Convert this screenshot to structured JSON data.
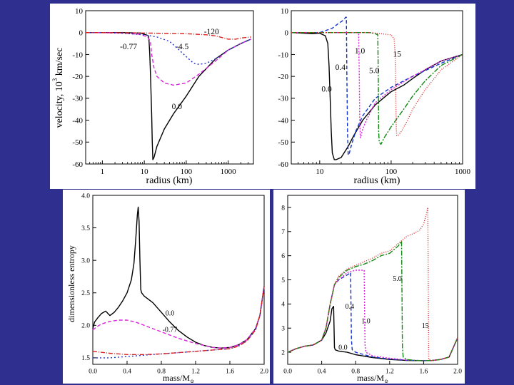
{
  "chart_data": [
    {
      "id": "top-left",
      "type": "line",
      "xlabel": "radius (km)",
      "ylabel": "velocity, 10",
      "ylabel_sup": "3",
      "ylabel_unit": " km/sec",
      "xscale": "log",
      "xlim": [
        0.4,
        4000
      ],
      "ylim": [
        -60,
        10
      ],
      "xticks": [
        1,
        10,
        100,
        1000
      ],
      "xtick_labels": [
        "1",
        "10",
        "100",
        "1000"
      ],
      "yticks": [
        10,
        0,
        -10,
        -20,
        -30,
        -40,
        -50,
        -60
      ],
      "series": [
        {
          "name": "0.0",
          "color": "#000000",
          "dash": "",
          "x": [
            0.4,
            1,
            3,
            8,
            11,
            12.5,
            13,
            13.5,
            14,
            14.5,
            15,
            15.5,
            16,
            17,
            20,
            30,
            50,
            100,
            200,
            500,
            1000,
            2000,
            3500
          ],
          "y": [
            0,
            0,
            0,
            -0.2,
            -1,
            -1.5,
            -4,
            -10,
            -18,
            -28,
            -38,
            -50,
            -58,
            -57,
            -52,
            -44,
            -37,
            -29,
            -20,
            -12,
            -8,
            -5,
            -3
          ]
        },
        {
          "name": "-0.77",
          "color": "#dd22dd",
          "dash": "5,3",
          "x": [
            0.4,
            1,
            3,
            8,
            12,
            14,
            15,
            17,
            20,
            30,
            50,
            100,
            200,
            500,
            1000,
            2000,
            3500
          ],
          "y": [
            0,
            0,
            -0.2,
            -0.8,
            -2,
            -4,
            -10,
            -16,
            -20,
            -23,
            -24,
            -23,
            -19,
            -13,
            -8,
            -5,
            -3
          ]
        },
        {
          "name": "-4.5",
          "color": "#2233cc",
          "dash": "2,3",
          "x": [
            0.4,
            1,
            3,
            10,
            20,
            40,
            60,
            100,
            150,
            200,
            300,
            500,
            1000,
            2000,
            3500
          ],
          "y": [
            0,
            0,
            -0.3,
            -1,
            -2,
            -4,
            -7,
            -11,
            -14,
            -14.5,
            -14,
            -12,
            -8,
            -5,
            -3
          ]
        },
        {
          "name": "-120",
          "color": "#dd2222",
          "dash": "6,2,1,2",
          "x": [
            0.4,
            10,
            100,
            300,
            500,
            800,
            1000,
            1500,
            2000,
            3500
          ],
          "y": [
            0,
            -0.2,
            -0.5,
            -1,
            -1.5,
            -2.5,
            -3,
            -3,
            -2.5,
            -2
          ]
        }
      ],
      "annotations": [
        {
          "text": "-120",
          "x": 400,
          "y": -0.8
        },
        {
          "text": "-0.77",
          "x": 4.2,
          "y": -7.5
        },
        {
          "text": "-4.5",
          "x": 80,
          "y": -7.5
        },
        {
          "text": "0.0",
          "x": 60,
          "y": -35
        }
      ]
    },
    {
      "id": "top-right",
      "type": "line",
      "xlabel": "radius (km)",
      "xscale": "log",
      "xlim": [
        4,
        1000
      ],
      "ylim": [
        -60,
        10
      ],
      "xticks": [
        10,
        100,
        1000
      ],
      "xtick_labels": [
        "10",
        "100",
        "1000"
      ],
      "yticks": [
        10,
        0,
        -10,
        -20,
        -30,
        -40,
        -50,
        -60
      ],
      "series": [
        {
          "name": "0.0",
          "color": "#000000",
          "dash": "",
          "x": [
            4,
            8,
            10,
            12,
            13,
            13.5,
            14,
            14.5,
            15,
            16,
            17,
            20,
            25,
            30,
            40,
            60,
            100,
            150,
            200,
            300,
            500,
            1000
          ],
          "y": [
            0,
            -0.5,
            -0.3,
            -1.5,
            -5,
            -15,
            -30,
            -45,
            -55,
            -58,
            -58,
            -57,
            -52,
            -47,
            -40,
            -33,
            -27,
            -24,
            -21,
            -17,
            -13,
            -10
          ]
        },
        {
          "name": "0.4",
          "color": "#1133cc",
          "dash": "5,3",
          "x": [
            4,
            10,
            15,
            18,
            20,
            22,
            23,
            23.6,
            24,
            24.5,
            25,
            26,
            28,
            32,
            40,
            60,
            100,
            200,
            500,
            1000
          ],
          "y": [
            0,
            0,
            2,
            4,
            5,
            6,
            7,
            7,
            -20,
            -45,
            -56,
            -55,
            -51,
            -45,
            -38,
            -30,
            -25,
            -20,
            -14,
            -10
          ]
        },
        {
          "name": "1.0",
          "color": "#dd22dd",
          "dash": "2,2",
          "x": [
            4,
            20,
            30,
            34,
            35,
            35.8,
            36.3,
            37,
            38,
            40,
            45,
            60,
            100,
            200,
            500,
            1000
          ],
          "y": [
            0,
            0,
            0,
            0,
            0,
            -20,
            -40,
            -48,
            -47,
            -44,
            -40,
            -32,
            -26,
            -20,
            -13,
            -10
          ]
        },
        {
          "name": "5.0",
          "color": "#118811",
          "dash": "7,2,2,2",
          "x": [
            4,
            30,
            50,
            60,
            65,
            66,
            66.8,
            68,
            72,
            80,
            100,
            150,
            200,
            300,
            500,
            1000
          ],
          "y": [
            0,
            0,
            0,
            -0.5,
            -1,
            -20,
            -45,
            -50,
            -51,
            -48,
            -43,
            -35,
            -29,
            -22,
            -15,
            -10
          ]
        },
        {
          "name": "15",
          "color": "#dd2222",
          "dash": "1,2",
          "x": [
            4,
            50,
            100,
            110,
            114,
            116,
            118,
            120,
            125,
            140,
            170,
            200,
            300,
            500,
            1000
          ],
          "y": [
            0,
            0,
            -1,
            -3,
            -10,
            -30,
            -44,
            -47,
            -47,
            -45,
            -40,
            -35,
            -26,
            -17,
            -10
          ]
        }
      ],
      "annotations": [
        {
          "text": "1.0",
          "x": 36.5,
          "y": -9.5
        },
        {
          "text": "15",
          "x": 121,
          "y": -11
        },
        {
          "text": "0.4",
          "x": 19.5,
          "y": -17
        },
        {
          "text": "5.0",
          "x": 58,
          "y": -18.5
        },
        {
          "text": "0.0",
          "x": 12.5,
          "y": -27
        }
      ]
    },
    {
      "id": "bottom-left",
      "type": "line",
      "xlabel": "mass/M",
      "xlabel_sub": "⊙",
      "ylabel": "dimensionless entropy",
      "xlim": [
        0,
        2
      ],
      "ylim": [
        1.4,
        4
      ],
      "xticks": [
        0,
        0.4,
        0.8,
        1.2,
        1.6,
        2.0
      ],
      "xtick_labels": [
        "0.0",
        "0.4",
        "0.8",
        "1.2",
        "1.6",
        "2.0"
      ],
      "yticks": [
        1.5,
        2.0,
        2.5,
        3.0,
        3.5,
        4.0
      ],
      "ytick_labels": [
        "1.5",
        "2.0",
        "2.5",
        "3.0",
        "3.5",
        "4.0"
      ],
      "series": [
        {
          "name": "0.0",
          "color": "#000000",
          "dash": "",
          "x": [
            0,
            0.02,
            0.06,
            0.1,
            0.15,
            0.2,
            0.25,
            0.3,
            0.35,
            0.4,
            0.45,
            0.48,
            0.5,
            0.52,
            0.53,
            0.54,
            0.55,
            0.56,
            0.57,
            0.6,
            0.7,
            0.8,
            0.9,
            1.0,
            1.1,
            1.2,
            1.3,
            1.4,
            1.5,
            1.6,
            1.7,
            1.8,
            1.9,
            1.95,
            2.0
          ],
          "y": [
            1.95,
            2.05,
            2.12,
            2.18,
            2.22,
            2.15,
            2.2,
            2.28,
            2.38,
            2.5,
            2.7,
            2.95,
            3.3,
            3.7,
            3.82,
            3.6,
            3.0,
            2.55,
            2.5,
            2.45,
            2.35,
            2.2,
            2.05,
            1.92,
            1.82,
            1.74,
            1.69,
            1.66,
            1.65,
            1.66,
            1.7,
            1.78,
            1.95,
            2.15,
            2.6
          ]
        },
        {
          "name": "-0.77",
          "color": "#dd22dd",
          "dash": "5,3",
          "x": [
            0,
            0.05,
            0.1,
            0.2,
            0.3,
            0.4,
            0.5,
            0.6,
            0.7,
            0.8,
            0.9,
            1.0,
            1.1,
            1.2,
            1.3,
            1.4,
            1.5,
            1.6,
            1.7,
            1.8,
            1.9,
            1.95,
            2.0
          ],
          "y": [
            1.93,
            1.98,
            2.02,
            2.06,
            2.08,
            2.08,
            2.05,
            2.0,
            1.95,
            1.9,
            1.85,
            1.8,
            1.76,
            1.72,
            1.69,
            1.66,
            1.65,
            1.66,
            1.7,
            1.78,
            1.95,
            2.15,
            2.6
          ]
        },
        {
          "name": "-4.5",
          "color": "#2233cc",
          "dash": "2,3",
          "x": [
            0,
            0.2,
            0.4,
            0.6,
            0.8,
            1.0,
            1.2,
            1.4,
            1.6,
            1.7,
            1.8,
            1.9,
            1.95,
            2.0
          ],
          "y": [
            1.5,
            1.5,
            1.52,
            1.54,
            1.56,
            1.58,
            1.6,
            1.62,
            1.64,
            1.68,
            1.76,
            1.93,
            2.15,
            2.6
          ]
        },
        {
          "name": "-120",
          "color": "#dd2222",
          "dash": "6,2,1,2",
          "x": [
            0,
            0.2,
            0.4,
            0.6,
            0.8,
            1.0,
            1.2,
            1.4,
            1.6,
            1.7,
            1.8,
            1.9,
            1.95,
            2.0
          ],
          "y": [
            1.6,
            1.57,
            1.55,
            1.55,
            1.56,
            1.58,
            1.6,
            1.62,
            1.64,
            1.68,
            1.76,
            1.93,
            2.15,
            2.6
          ]
        }
      ],
      "annotations": [
        {
          "text": "0.0",
          "x": 0.9,
          "y": 2.15
        },
        {
          "text": "-0.77",
          "x": 0.9,
          "y": 1.9
        }
      ]
    },
    {
      "id": "bottom-right",
      "type": "line",
      "xlabel": "mass/M",
      "xlabel_sub": "⊙",
      "xlim": [
        0,
        2
      ],
      "ylim": [
        1.5,
        8.5
      ],
      "xticks": [
        0,
        0.4,
        0.8,
        1.2,
        1.6,
        2.0
      ],
      "xtick_labels": [
        "0.0",
        "0.4",
        "0.8",
        "1.2",
        "1.6",
        "2.0"
      ],
      "yticks": [
        2,
        3,
        4,
        5,
        6,
        7,
        8
      ],
      "series": [
        {
          "name": "0.0",
          "color": "#000000",
          "dash": "",
          "x": [
            0,
            0.1,
            0.2,
            0.3,
            0.4,
            0.45,
            0.5,
            0.52,
            0.54,
            0.55,
            0.56,
            0.6,
            0.7,
            0.8,
            1.0,
            1.2,
            1.4,
            1.6,
            1.7,
            1.8,
            1.9,
            2.0
          ],
          "y": [
            2.0,
            2.15,
            2.25,
            2.3,
            2.5,
            2.8,
            3.3,
            3.8,
            3.9,
            2.2,
            2.1,
            2.05,
            2.0,
            1.9,
            1.78,
            1.7,
            1.66,
            1.65,
            1.66,
            1.7,
            1.8,
            2.6
          ]
        },
        {
          "name": "0.4",
          "color": "#1133cc",
          "dash": "5,3",
          "x": [
            0,
            0.1,
            0.2,
            0.3,
            0.4,
            0.45,
            0.5,
            0.55,
            0.6,
            0.7,
            0.74,
            0.75,
            0.76,
            0.8,
            0.9,
            1.0,
            1.2,
            1.4,
            1.6,
            1.7,
            1.8,
            1.9,
            2.0
          ],
          "y": [
            2.0,
            2.15,
            2.25,
            2.3,
            2.5,
            3.0,
            4.0,
            4.8,
            5.0,
            5.2,
            5.3,
            2.5,
            2.1,
            2.0,
            1.9,
            1.8,
            1.72,
            1.67,
            1.65,
            1.66,
            1.7,
            1.8,
            2.6
          ]
        },
        {
          "name": "1.0",
          "color": "#dd22dd",
          "dash": "2,2",
          "x": [
            0,
            0.1,
            0.2,
            0.3,
            0.4,
            0.45,
            0.5,
            0.55,
            0.6,
            0.7,
            0.8,
            0.9,
            0.91,
            0.92,
            1.0,
            1.2,
            1.4,
            1.6,
            1.7,
            1.8,
            1.9,
            2.0
          ],
          "y": [
            2.0,
            2.15,
            2.25,
            2.3,
            2.5,
            3.0,
            4.0,
            4.8,
            5.0,
            5.3,
            5.4,
            5.4,
            2.3,
            2.0,
            1.85,
            1.75,
            1.68,
            1.65,
            1.66,
            1.7,
            1.8,
            2.6
          ]
        },
        {
          "name": "5.0",
          "color": "#118811",
          "dash": "7,2,2,2",
          "x": [
            0,
            0.1,
            0.2,
            0.3,
            0.4,
            0.45,
            0.5,
            0.55,
            0.6,
            0.7,
            0.8,
            0.9,
            1.0,
            1.1,
            1.2,
            1.3,
            1.34,
            1.35,
            1.36,
            1.4,
            1.5,
            1.6,
            1.7,
            1.8,
            1.9,
            2.0
          ],
          "y": [
            2.0,
            2.15,
            2.25,
            2.3,
            2.5,
            3.0,
            4.0,
            4.8,
            5.1,
            5.4,
            5.55,
            5.65,
            5.8,
            6.0,
            6.1,
            6.4,
            6.6,
            2.2,
            1.8,
            1.7,
            1.66,
            1.65,
            1.66,
            1.7,
            1.8,
            2.6
          ]
        },
        {
          "name": "15",
          "color": "#dd2222",
          "dash": "1,2",
          "x": [
            0,
            0.1,
            0.2,
            0.3,
            0.4,
            0.45,
            0.5,
            0.55,
            0.6,
            0.7,
            0.8,
            0.9,
            1.0,
            1.1,
            1.2,
            1.3,
            1.4,
            1.5,
            1.55,
            1.6,
            1.63,
            1.65,
            1.66,
            1.7,
            1.8,
            1.9,
            2.0
          ],
          "y": [
            2.0,
            2.15,
            2.25,
            2.3,
            2.5,
            3.0,
            4.0,
            4.8,
            5.15,
            5.45,
            5.6,
            5.75,
            5.9,
            6.1,
            6.2,
            6.5,
            6.8,
            6.95,
            7.05,
            7.3,
            7.7,
            8.0,
            1.7,
            1.65,
            1.7,
            1.8,
            2.6
          ]
        }
      ],
      "annotations": [
        {
          "text": "0.4",
          "x": 0.73,
          "y": 3.8
        },
        {
          "text": "1.0",
          "x": 0.92,
          "y": 3.2
        },
        {
          "text": "0.0",
          "x": 0.65,
          "y": 2.1
        },
        {
          "text": "5.0",
          "x": 1.29,
          "y": 4.95
        },
        {
          "text": "15",
          "x": 1.62,
          "y": 3.0
        }
      ]
    }
  ]
}
